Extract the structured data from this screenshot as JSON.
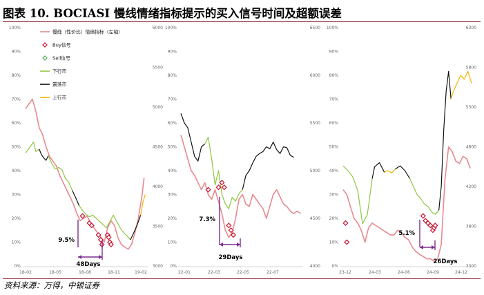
{
  "title": "图表 10. BOCIASI 慢线情绪指标提示的买入信号时间及超额误差",
  "source": "资料来源：万得，中银证券",
  "colors": {
    "sentiment": "#e8898f",
    "bull": "#f5b400",
    "bear": "#8dc63f",
    "shock": "#111111",
    "buy": "#c8102e",
    "sell": "#4caf50",
    "annot": "#7b2d8e",
    "axis": "#999999"
  },
  "legend": {
    "items": [
      {
        "label": "慢线（性价比）情绪指标（左轴）",
        "kind": "line",
        "color": "#e8898f"
      },
      {
        "label": "Buy信号",
        "kind": "diamond",
        "color": "#c8102e"
      },
      {
        "label": "Sell信号",
        "kind": "diamond",
        "color": "#4caf50"
      },
      {
        "label": "下行市",
        "kind": "line",
        "color": "#8dc63f"
      },
      {
        "label": "震荡市",
        "kind": "line",
        "color": "#111111"
      },
      {
        "label": "上行市",
        "kind": "line",
        "color": "#f5b400"
      }
    ]
  },
  "chart_data": [
    {
      "type": "line",
      "x_ticks": [
        "18-02",
        "18-05",
        "18-08",
        "18-11",
        "19-02"
      ],
      "left_axis": {
        "ticks": [
          "0%",
          "10%",
          "20%",
          "30%",
          "40%",
          "50%",
          "60%",
          "70%",
          "80%",
          "90%",
          "100%"
        ],
        "range": [
          0,
          100
        ]
      },
      "right_axis": {
        "ticks": [
          "3000",
          "3500",
          "4000",
          "4500",
          "5000",
          "5500",
          "6000"
        ],
        "range": [
          3000,
          6000
        ]
      },
      "sentiment": [
        [
          0,
          66
        ],
        [
          3,
          68
        ],
        [
          6,
          70
        ],
        [
          9,
          65
        ],
        [
          12,
          58
        ],
        [
          15,
          55
        ],
        [
          18,
          50
        ],
        [
          21,
          46
        ],
        [
          24,
          44
        ],
        [
          27,
          42
        ],
        [
          30,
          38
        ],
        [
          33,
          35
        ],
        [
          36,
          32
        ],
        [
          39,
          29
        ],
        [
          42,
          26
        ],
        [
          45,
          22
        ],
        [
          48,
          19
        ],
        [
          51,
          20
        ],
        [
          54,
          21
        ],
        [
          57,
          18
        ],
        [
          60,
          16
        ],
        [
          63,
          14
        ],
        [
          66,
          12
        ],
        [
          69,
          10
        ],
        [
          72,
          16
        ],
        [
          75,
          19
        ],
        [
          78,
          17
        ],
        [
          81,
          12
        ],
        [
          84,
          9
        ],
        [
          87,
          8
        ],
        [
          90,
          7
        ],
        [
          93,
          9
        ],
        [
          96,
          14
        ],
        [
          99,
          20
        ],
        [
          102,
          29
        ],
        [
          104,
          37
        ]
      ],
      "index_segments": [
        {
          "regime": "bear",
          "points": [
            [
              0,
              4420
            ],
            [
              4,
              4500
            ],
            [
              7,
              4560
            ],
            [
              9,
              4440
            ],
            [
              12,
              4470
            ]
          ]
        },
        {
          "regime": "shock",
          "points": [
            [
              12,
              4470
            ],
            [
              14,
              4400
            ],
            [
              16,
              4360
            ],
            [
              18,
              4330
            ],
            [
              20,
              4390
            ]
          ]
        },
        {
          "regime": "bear",
          "points": [
            [
              20,
              4390
            ],
            [
              23,
              4290
            ],
            [
              26,
              4220
            ],
            [
              29,
              4240
            ],
            [
              32,
              4210
            ],
            [
              35,
              4100
            ],
            [
              38,
              4050
            ],
            [
              41,
              3950
            ]
          ]
        },
        {
          "regime": "shock",
          "points": [
            [
              41,
              3950
            ],
            [
              44,
              3860
            ],
            [
              47,
              3760
            ]
          ]
        },
        {
          "regime": "bear",
          "points": [
            [
              47,
              3760
            ],
            [
              50,
              3700
            ],
            [
              53,
              3650
            ],
            [
              56,
              3620
            ],
            [
              59,
              3640
            ],
            [
              62,
              3600
            ],
            [
              65,
              3560
            ],
            [
              68,
              3520
            ],
            [
              71,
              3480
            ],
            [
              74,
              3560
            ],
            [
              77,
              3640
            ],
            [
              80,
              3560
            ],
            [
              83,
              3480
            ],
            [
              86,
              3420
            ],
            [
              89,
              3380
            ],
            [
              92,
              3330
            ]
          ]
        },
        {
          "regime": "shock",
          "points": [
            [
              92,
              3330
            ],
            [
              95,
              3420
            ],
            [
              98,
              3520
            ],
            [
              101,
              3640
            ]
          ]
        },
        {
          "regime": "bull",
          "points": [
            [
              101,
              3640
            ],
            [
              103,
              3800
            ],
            [
              105,
              3900
            ]
          ]
        }
      ],
      "buy_signals": [
        [
          50,
          21
        ],
        [
          56,
          18
        ],
        [
          58,
          17
        ],
        [
          64,
          13
        ],
        [
          66,
          11
        ],
        [
          67,
          9
        ],
        [
          72,
          13
        ],
        [
          73,
          12
        ],
        [
          74,
          10
        ],
        [
          75,
          9
        ]
      ],
      "annotations": [
        {
          "text": "9.5%"
        },
        {
          "text": "48Days"
        }
      ]
    },
    {
      "type": "line",
      "x_ticks": [
        "22-01",
        "22-03",
        "22-05",
        "22-07"
      ],
      "left_axis": {
        "ticks": [
          "0%",
          "10%",
          "20%",
          "30%",
          "40%",
          "50%",
          "60%",
          "70%",
          "80%",
          "90%",
          "100%"
        ],
        "range": [
          0,
          100
        ]
      },
      "right_axis": {
        "ticks": [
          "4000",
          "4500",
          "5000",
          "5500",
          "6000",
          "6500"
        ],
        "range": [
          4000,
          6500
        ]
      },
      "sentiment": [
        [
          0,
          55
        ],
        [
          3,
          50
        ],
        [
          6,
          45
        ],
        [
          9,
          40
        ],
        [
          12,
          38
        ],
        [
          15,
          35
        ],
        [
          18,
          32
        ],
        [
          21,
          35
        ],
        [
          24,
          30
        ],
        [
          27,
          28
        ],
        [
          30,
          32
        ],
        [
          33,
          27
        ],
        [
          36,
          22
        ],
        [
          39,
          15
        ],
        [
          42,
          12
        ],
        [
          45,
          14
        ],
        [
          48,
          20
        ],
        [
          51,
          28
        ],
        [
          54,
          30
        ],
        [
          57,
          26
        ],
        [
          60,
          25
        ],
        [
          63,
          30
        ],
        [
          66,
          28
        ],
        [
          69,
          26
        ],
        [
          72,
          24
        ],
        [
          75,
          20
        ],
        [
          78,
          25
        ],
        [
          81,
          30
        ],
        [
          84,
          32
        ],
        [
          87,
          29
        ],
        [
          90,
          26
        ],
        [
          93,
          25
        ],
        [
          96,
          23
        ],
        [
          99,
          22
        ],
        [
          102,
          23
        ],
        [
          105,
          22
        ]
      ],
      "index_segments": [
        {
          "regime": "shock",
          "points": [
            [
              0,
              5600
            ],
            [
              3,
              5500
            ],
            [
              6,
              5450
            ],
            [
              9,
              5300
            ],
            [
              12,
              5150
            ],
            [
              15,
              5100
            ],
            [
              18,
              5250
            ],
            [
              21,
              5280
            ]
          ]
        },
        {
          "regime": "bear",
          "points": [
            [
              21,
              5280
            ],
            [
              24,
              5350
            ],
            [
              27,
              5120
            ],
            [
              30,
              4850
            ],
            [
              33,
              5000
            ],
            [
              36,
              4750
            ],
            [
              39,
              4650
            ],
            [
              42,
              4600
            ],
            [
              45,
              4720
            ],
            [
              48,
              4680
            ],
            [
              51,
              4760
            ],
            [
              54,
              4800
            ]
          ]
        },
        {
          "regime": "shock",
          "points": [
            [
              54,
              4800
            ],
            [
              57,
              4950
            ],
            [
              60,
              5000
            ],
            [
              63,
              5080
            ],
            [
              66,
              5150
            ],
            [
              69,
              5180
            ],
            [
              72,
              5200
            ],
            [
              75,
              5250
            ],
            [
              78,
              5230
            ],
            [
              81,
              5300
            ],
            [
              84,
              5220
            ],
            [
              87,
              5180
            ],
            [
              90,
              5250
            ],
            [
              93,
              5240
            ],
            [
              96,
              5160
            ],
            [
              99,
              5140
            ]
          ]
        }
      ],
      "buy_signals": [
        [
          24,
          32
        ],
        [
          33,
          33
        ],
        [
          36,
          35
        ],
        [
          38,
          33
        ],
        [
          42,
          17
        ],
        [
          44,
          15
        ],
        [
          46,
          13
        ]
      ],
      "annotations": [
        {
          "text": "7.3%"
        },
        {
          "text": "29Days"
        }
      ]
    },
    {
      "type": "line",
      "x_ticks": [
        "23-12",
        "24-03",
        "24-06",
        "24-09",
        "24-12"
      ],
      "left_axis": {
        "ticks": [
          "0%",
          "10%",
          "20%",
          "30%",
          "40%",
          "50%",
          "60%",
          "70%",
          "80%",
          "90%",
          "100%"
        ],
        "range": [
          0,
          100
        ]
      },
      "right_axis": {
        "ticks": [
          "3300",
          "3800",
          "4300",
          "4800",
          "5300",
          "5800",
          "6300"
        ],
        "range": [
          3300,
          6300
        ]
      },
      "sentiment": [
        [
          0,
          32
        ],
        [
          3,
          30
        ],
        [
          6,
          25
        ],
        [
          9,
          20
        ],
        [
          12,
          18
        ],
        [
          15,
          15
        ],
        [
          18,
          10
        ],
        [
          21,
          16
        ],
        [
          24,
          18
        ],
        [
          27,
          17
        ],
        [
          30,
          16
        ],
        [
          33,
          15
        ],
        [
          36,
          14
        ],
        [
          39,
          13
        ],
        [
          42,
          13
        ],
        [
          45,
          15
        ],
        [
          48,
          14
        ],
        [
          51,
          12
        ],
        [
          54,
          11
        ],
        [
          57,
          8
        ],
        [
          60,
          6
        ],
        [
          63,
          5
        ],
        [
          66,
          4
        ],
        [
          69,
          3
        ],
        [
          72,
          3
        ],
        [
          75,
          2
        ],
        [
          78,
          3
        ],
        [
          81,
          9
        ],
        [
          84,
          36
        ],
        [
          87,
          50
        ],
        [
          90,
          48
        ],
        [
          93,
          44
        ],
        [
          96,
          43
        ],
        [
          99,
          46
        ],
        [
          102,
          45
        ],
        [
          105,
          41
        ]
      ],
      "index_segments": [
        {
          "regime": "bear",
          "points": [
            [
              0,
              4560
            ],
            [
              4,
              4500
            ],
            [
              8,
              4420
            ],
            [
              12,
              4250
            ],
            [
              16,
              3830
            ],
            [
              20,
              3950
            ],
            [
              24,
              4400
            ]
          ]
        },
        {
          "regime": "shock",
          "points": [
            [
              24,
              4400
            ],
            [
              26,
              4550
            ],
            [
              30,
              4600
            ],
            [
              34,
              4480
            ]
          ]
        },
        {
          "regime": "bull",
          "points": [
            [
              34,
              4480
            ],
            [
              37,
              4500
            ],
            [
              40,
              4470
            ],
            [
              43,
              4520
            ]
          ]
        },
        {
          "regime": "shock",
          "points": [
            [
              43,
              4520
            ],
            [
              47,
              4560
            ],
            [
              51,
              4500
            ],
            [
              55,
              4400
            ]
          ]
        },
        {
          "regime": "bear",
          "points": [
            [
              55,
              4400
            ],
            [
              58,
              4300
            ],
            [
              61,
              4200
            ],
            [
              64,
              4150
            ],
            [
              67,
              4080
            ],
            [
              70,
              4050
            ],
            [
              73,
              3980
            ],
            [
              76,
              3950
            ],
            [
              79,
              4000
            ]
          ]
        },
        {
          "regime": "shock",
          "points": [
            [
              79,
              4000
            ],
            [
              81,
              4300
            ],
            [
              83,
              5000
            ],
            [
              85,
              5500
            ],
            [
              87,
              5750
            ],
            [
              89,
              5400
            ]
          ]
        },
        {
          "regime": "bull",
          "points": [
            [
              89,
              5400
            ],
            [
              91,
              5500
            ],
            [
              94,
              5600
            ],
            [
              97,
              5700
            ],
            [
              100,
              5650
            ],
            [
              103,
              5750
            ],
            [
              106,
              5600
            ]
          ]
        }
      ],
      "buy_signals": [
        [
          2,
          18
        ],
        [
          3,
          10
        ],
        [
          66,
          21
        ],
        [
          68,
          19
        ],
        [
          70,
          18
        ],
        [
          72,
          17
        ],
        [
          74,
          15
        ],
        [
          75,
          16
        ],
        [
          76,
          17
        ]
      ],
      "annotations": [
        {
          "text": "5.1%"
        },
        {
          "text": "26Days"
        }
      ]
    }
  ]
}
